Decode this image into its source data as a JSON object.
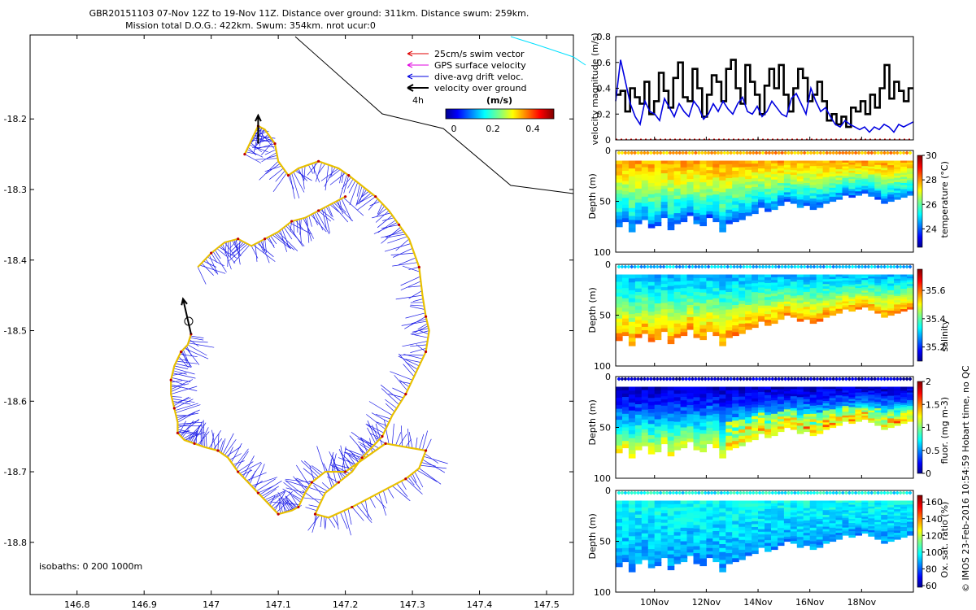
{
  "title": {
    "line1": "GBR20151103 07-Nov 12Z to 19-Nov 11Z. Distance over ground: 311km. Distance swum: 259km.",
    "line2": "Mission total D.O.G.: 422km. Swum: 354km. nrot ucur:0"
  },
  "copyright": "© IMOS 23-Feb-2016 10:54:59 Hobart time, no QC",
  "map": {
    "isobaths_label": "isobaths: 0   200  1000m",
    "x_ticks": [
      "146.8",
      "146.9",
      "147",
      "147.1",
      "147.2",
      "147.3",
      "147.4",
      "147.5"
    ],
    "y_ticks": [
      "-18.2",
      "-18.3",
      "-18.4",
      "-18.5",
      "-18.6",
      "-18.7",
      "-18.8"
    ],
    "xlim": [
      146.73,
      147.54
    ],
    "ylim": [
      -18.874,
      -18.081
    ],
    "legend": [
      {
        "label": "25cm/s swim vector",
        "color": "#e00000"
      },
      {
        "label": "GPS surface velocity",
        "color": "#e000e0"
      },
      {
        "label": "dive-avg drift veloc.",
        "color": "#0000e0"
      },
      {
        "label": "velocity over ground",
        "color": "#000000"
      }
    ],
    "scale_label": "4h",
    "colorbar": {
      "unit": "(m/s)",
      "ticks": [
        "0",
        "0.2",
        "0.4"
      ],
      "range": [
        0,
        0.5
      ]
    },
    "track": [
      [
        147.05,
        -18.25
      ],
      [
        147.06,
        -18.23
      ],
      [
        147.07,
        -18.21
      ],
      [
        147.08,
        -18.215
      ],
      [
        147.095,
        -18.235
      ],
      [
        147.1,
        -18.26
      ],
      [
        147.115,
        -18.28
      ],
      [
        147.13,
        -18.27
      ],
      [
        147.16,
        -18.26
      ],
      [
        147.19,
        -18.27
      ],
      [
        147.205,
        -18.28
      ],
      [
        147.225,
        -18.295
      ],
      [
        147.245,
        -18.31
      ],
      [
        147.265,
        -18.33
      ],
      [
        147.28,
        -18.35
      ],
      [
        147.295,
        -18.37
      ],
      [
        147.31,
        -18.41
      ],
      [
        147.315,
        -18.45
      ],
      [
        147.32,
        -18.48
      ],
      [
        147.325,
        -18.5
      ],
      [
        147.32,
        -18.53
      ],
      [
        147.305,
        -18.56
      ],
      [
        147.29,
        -18.59
      ],
      [
        147.27,
        -18.62
      ],
      [
        147.255,
        -18.65
      ],
      [
        147.24,
        -18.665
      ],
      [
        147.225,
        -18.68
      ],
      [
        147.21,
        -18.7
      ],
      [
        147.19,
        -18.715
      ],
      [
        147.17,
        -18.73
      ],
      [
        147.155,
        -18.76
      ],
      [
        147.175,
        -18.765
      ],
      [
        147.21,
        -18.75
      ],
      [
        147.25,
        -18.73
      ],
      [
        147.29,
        -18.71
      ],
      [
        147.31,
        -18.695
      ],
      [
        147.32,
        -18.67
      ],
      [
        147.29,
        -18.665
      ],
      [
        147.26,
        -18.66
      ],
      [
        147.23,
        -18.68
      ],
      [
        147.2,
        -18.7
      ],
      [
        147.17,
        -18.7
      ],
      [
        147.15,
        -18.715
      ],
      [
        147.14,
        -18.73
      ],
      [
        147.13,
        -18.75
      ],
      [
        147.12,
        -18.755
      ],
      [
        147.1,
        -18.76
      ],
      [
        147.085,
        -18.745
      ],
      [
        147.07,
        -18.73
      ],
      [
        147.055,
        -18.715
      ],
      [
        147.04,
        -18.7
      ],
      [
        147.025,
        -18.68
      ],
      [
        147.01,
        -18.67
      ],
      [
        146.99,
        -18.665
      ],
      [
        146.975,
        -18.66
      ],
      [
        146.96,
        -18.655
      ],
      [
        146.95,
        -18.645
      ],
      [
        146.95,
        -18.63
      ],
      [
        146.945,
        -18.61
      ],
      [
        146.94,
        -18.59
      ],
      [
        146.94,
        -18.57
      ],
      [
        146.945,
        -18.55
      ],
      [
        146.955,
        -18.53
      ],
      [
        146.965,
        -18.52
      ],
      [
        146.97,
        -18.505
      ]
    ],
    "track2": [
      [
        146.98,
        -18.41
      ],
      [
        147.0,
        -18.39
      ],
      [
        147.02,
        -18.375
      ],
      [
        147.04,
        -18.37
      ],
      [
        147.06,
        -18.38
      ],
      [
        147.08,
        -18.37
      ],
      [
        147.1,
        -18.36
      ],
      [
        147.12,
        -18.345
      ],
      [
        147.14,
        -18.34
      ],
      [
        147.16,
        -18.33
      ],
      [
        147.18,
        -18.32
      ],
      [
        147.2,
        -18.31
      ]
    ],
    "vog_arrows": [
      {
        "lon": 146.97,
        "lat": -18.505,
        "dlon": -0.012,
        "dlat": 0.05
      },
      {
        "lon": 147.07,
        "lat": -18.235,
        "dlon": 0.0,
        "dlat": 0.04
      }
    ]
  },
  "chart_data": [
    {
      "type": "line",
      "ylabel": "velocity magnitude (m/s)",
      "ylim": [
        0,
        0.8
      ],
      "y_ticks": [
        "0",
        "0.2",
        "0.4",
        "0.6",
        "0.8"
      ],
      "xlim": [
        8.5,
        20.0
      ],
      "series": [
        {
          "name": "velocity over ground",
          "color": "#000000",
          "values": [
            0.35,
            0.38,
            0.22,
            0.4,
            0.33,
            0.28,
            0.45,
            0.2,
            0.3,
            0.52,
            0.38,
            0.25,
            0.48,
            0.6,
            0.33,
            0.3,
            0.55,
            0.4,
            0.18,
            0.35,
            0.5,
            0.45,
            0.3,
            0.55,
            0.62,
            0.4,
            0.28,
            0.58,
            0.45,
            0.35,
            0.2,
            0.42,
            0.55,
            0.4,
            0.58,
            0.35,
            0.22,
            0.4,
            0.55,
            0.48,
            0.3,
            0.35,
            0.45,
            0.3,
            0.15,
            0.2,
            0.12,
            0.18,
            0.1,
            0.25,
            0.22,
            0.3,
            0.2,
            0.35,
            0.25,
            0.4,
            0.58,
            0.32,
            0.45,
            0.38,
            0.3,
            0.4
          ]
        },
        {
          "name": "dive-avg drift veloc.",
          "color": "#0000e0",
          "values": [
            0.3,
            0.62,
            0.45,
            0.28,
            0.18,
            0.12,
            0.3,
            0.22,
            0.2,
            0.15,
            0.32,
            0.25,
            0.18,
            0.28,
            0.22,
            0.18,
            0.3,
            0.25,
            0.16,
            0.2,
            0.28,
            0.22,
            0.3,
            0.24,
            0.2,
            0.28,
            0.33,
            0.22,
            0.2,
            0.26,
            0.18,
            0.22,
            0.3,
            0.25,
            0.2,
            0.18,
            0.32,
            0.36,
            0.28,
            0.2,
            0.4,
            0.3,
            0.22,
            0.25,
            0.18,
            0.12,
            0.1,
            0.15,
            0.12,
            0.1,
            0.08,
            0.1,
            0.06,
            0.1,
            0.08,
            0.12,
            0.1,
            0.06,
            0.12,
            0.1,
            0.12,
            0.14
          ]
        }
      ]
    },
    {
      "type": "heatmap",
      "ylabel": "Depth (m)",
      "colorbar_label": "temperature (°C)",
      "ylim": [
        0,
        100
      ],
      "y_ticks": [
        "0",
        "50",
        "100"
      ],
      "color_ticks": [
        "24",
        "26",
        "28",
        "30"
      ],
      "color_range": [
        22.5,
        30
      ],
      "surface_value": 27.8,
      "deep_value": 24.2,
      "bottom_depth": [
        75,
        70,
        80,
        72,
        68,
        76,
        74,
        66,
        78,
        72,
        70,
        64,
        72,
        74,
        66,
        70,
        80,
        72,
        70,
        68,
        64,
        62,
        56,
        60,
        58,
        54,
        50,
        52,
        56,
        54,
        58,
        56,
        52,
        50,
        48,
        44,
        46,
        44,
        42,
        45,
        48,
        52,
        50,
        48,
        46,
        44
      ]
    },
    {
      "type": "heatmap",
      "ylabel": "Depth (m)",
      "colorbar_label": "salinity",
      "ylim": [
        0,
        100
      ],
      "y_ticks": [
        "0",
        "50",
        "100"
      ],
      "color_ticks": [
        "35.2",
        "35.4",
        "35.6"
      ],
      "color_range": [
        35.1,
        35.75
      ],
      "surface_value": 35.3,
      "deep_value": 35.58,
      "bottom_depth": [
        75,
        70,
        80,
        72,
        68,
        76,
        74,
        66,
        78,
        72,
        70,
        64,
        72,
        74,
        66,
        70,
        80,
        72,
        70,
        68,
        64,
        62,
        56,
        60,
        58,
        54,
        50,
        52,
        56,
        54,
        58,
        56,
        52,
        50,
        48,
        44,
        46,
        44,
        42,
        45,
        48,
        52,
        50,
        48,
        46,
        44
      ]
    },
    {
      "type": "heatmap",
      "ylabel": "Depth (m)",
      "colorbar_label": "fluor. (mg m-3)",
      "ylim": [
        0,
        100
      ],
      "y_ticks": [
        "0",
        "50",
        "100"
      ],
      "color_ticks": [
        "0",
        "0.5",
        "1",
        "1.5",
        "2"
      ],
      "color_range": [
        0,
        2
      ],
      "surface_value": 0.15,
      "deep_value": 1.2,
      "bottom_depth": [
        75,
        70,
        80,
        72,
        68,
        76,
        74,
        66,
        78,
        72,
        70,
        64,
        72,
        74,
        66,
        70,
        80,
        72,
        70,
        68,
        64,
        62,
        56,
        60,
        58,
        54,
        50,
        52,
        56,
        54,
        58,
        56,
        52,
        50,
        48,
        44,
        46,
        44,
        42,
        45,
        48,
        52,
        50,
        48,
        46,
        44
      ]
    },
    {
      "type": "heatmap",
      "ylabel": "Depth (m)",
      "colorbar_label": "Ox. sat. ratio (%)",
      "ylim": [
        0,
        100
      ],
      "y_ticks": [
        "0",
        "50",
        "100"
      ],
      "color_ticks": [
        "60",
        "80",
        "100",
        "120",
        "140",
        "160"
      ],
      "color_range": [
        58,
        168
      ],
      "surface_value": 100,
      "deep_value": 88,
      "bottom_depth": [
        75,
        70,
        80,
        72,
        68,
        76,
        74,
        66,
        78,
        72,
        70,
        64,
        72,
        74,
        66,
        70,
        80,
        72,
        70,
        68,
        64,
        62,
        56,
        60,
        58,
        54,
        50,
        52,
        56,
        54,
        58,
        56,
        52,
        50,
        48,
        44,
        46,
        44,
        42,
        45,
        48,
        52,
        50,
        48,
        46,
        44
      ]
    }
  ],
  "time_axis": {
    "xlim": [
      8.5,
      20.0
    ],
    "ticks": [
      {
        "day": 10,
        "label": "10Nov"
      },
      {
        "day": 12,
        "label": "12Nov"
      },
      {
        "day": 14,
        "label": "14Nov"
      },
      {
        "day": 16,
        "label": "16Nov"
      },
      {
        "day": 18,
        "label": "18Nov"
      }
    ]
  }
}
